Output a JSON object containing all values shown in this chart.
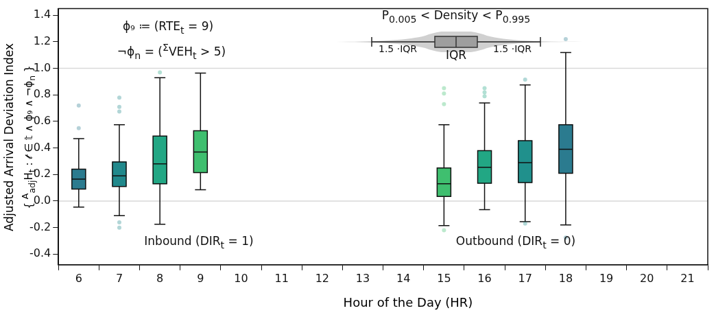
{
  "chart_data": {
    "type": "box",
    "xlabel": "Hour of the Day (HR)",
    "ylabel": "Adjusted Arrival Deviation Index\n{ $^{A}$$_{adj}$H$_{t}$ : 𝓉 ∈ 𝕥 ∧ ϕ₉ ∧ ¬ϕ$_{n}$ }",
    "categories": [
      "6",
      "7",
      "8",
      "9",
      "10",
      "11",
      "12",
      "13",
      "14",
      "15",
      "16",
      "17",
      "18",
      "19",
      "20",
      "21"
    ],
    "boxes": [
      {
        "low": -0.045,
        "q1": 0.09,
        "median": 0.165,
        "q3": 0.24,
        "high": 0.47,
        "outliers": [
          0.72,
          0.55
        ]
      },
      {
        "low": -0.11,
        "q1": 0.11,
        "median": 0.19,
        "q3": 0.295,
        "high": 0.575,
        "outliers": [
          0.78,
          0.71,
          0.675,
          -0.16,
          -0.2
        ]
      },
      {
        "low": -0.175,
        "q1": 0.13,
        "median": 0.28,
        "q3": 0.49,
        "high": 0.93,
        "outliers": [
          0.97
        ]
      },
      {
        "low": 0.085,
        "q1": 0.215,
        "median": 0.37,
        "q3": 0.53,
        "high": 0.965
      },
      null,
      null,
      null,
      null,
      null,
      {
        "low": -0.185,
        "q1": 0.035,
        "median": 0.13,
        "q3": 0.25,
        "high": 0.575,
        "outliers": [
          0.85,
          0.81,
          0.73,
          -0.22
        ]
      },
      {
        "low": -0.065,
        "q1": 0.135,
        "median": 0.255,
        "q3": 0.38,
        "high": 0.74,
        "outliers": [
          0.85,
          0.82,
          0.79
        ]
      },
      {
        "low": -0.155,
        "q1": 0.14,
        "median": 0.29,
        "q3": 0.455,
        "high": 0.875,
        "outliers": [
          0.915,
          -0.17
        ]
      },
      {
        "low": -0.18,
        "q1": 0.21,
        "median": 0.39,
        "q3": 0.575,
        "high": 1.12,
        "outliers": [
          1.22,
          -0.275
        ]
      },
      null,
      null,
      null
    ],
    "colors": [
      "#2b7b8f",
      "#21898c",
      "#22a784",
      "#3fbf6f",
      "#888888",
      "#888888",
      "#888888",
      "#888888",
      "#888888",
      "#3fbf6f",
      "#22a784",
      "#20908c",
      "#2b7b8f",
      "#888888",
      "#888888",
      "#888888"
    ],
    "ylim": [
      -0.48,
      1.45
    ],
    "yticks": [
      -0.4,
      -0.2,
      {
        "value": 0,
        "label": "0.0"
      },
      0.2,
      0.4,
      0.6,
      0.8,
      {
        "value": 1,
        "label": "1.0"
      },
      1.2,
      1.4
    ],
    "ref_lines": [
      {
        "axis": "y",
        "value": 0,
        "color": "#d9d9d9"
      },
      {
        "axis": "y",
        "value": 1,
        "color": "#d9d9d9"
      }
    ],
    "annotations": [
      "ϕ₉ ≔ (RTE$_{t}$ = 9)",
      "¬ϕ$_{n}$ = ($^{Σ}$VEH$_{t}$ > 5)",
      "P$_{0.005}$ < Density < P$_{0.995}$",
      "1.5 ·IQR",
      "IQR",
      "1.5 ·IQR",
      "Inbound (DIR$_{t}$ = 1)",
      "Outbound (DIR$_{t}$ = 0)"
    ]
  }
}
